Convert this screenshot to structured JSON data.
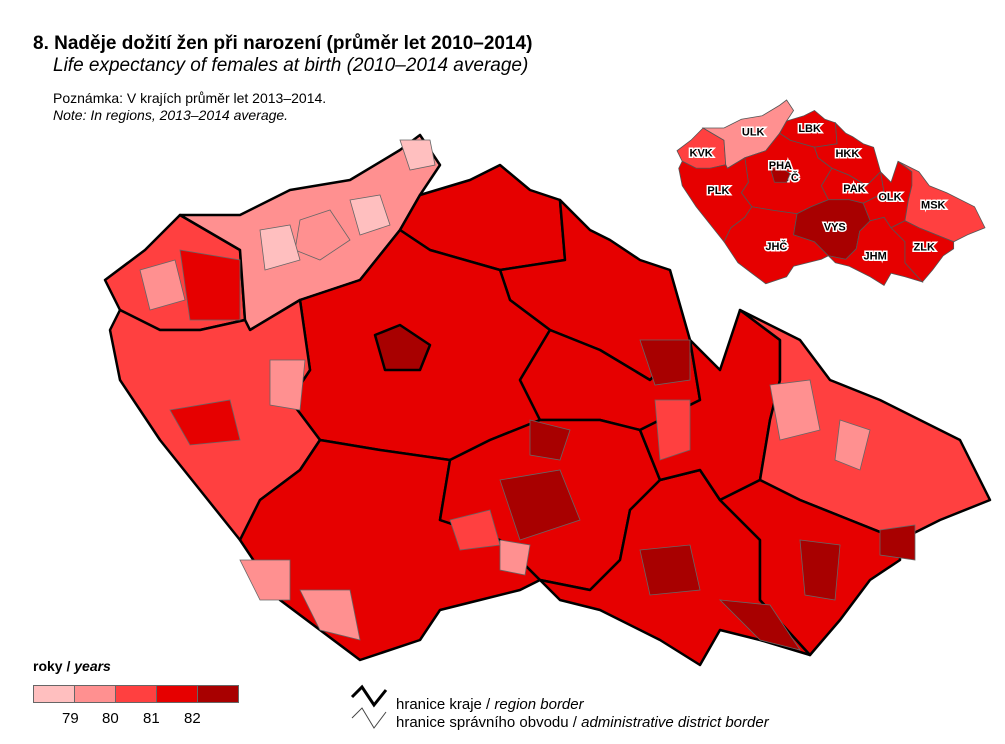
{
  "title": "8. Naděje dožití žen při narození (průměr let 2010–2014)",
  "subtitle": "Life expectancy of females at birth (2010–2014 average)",
  "note_cz": "Poznámka: V krajích průměr let 2013–2014.",
  "note_en": "Note: In regions, 2013–2014 average.",
  "legend": {
    "title_cz": "roky / ",
    "title_en": "years",
    "colors": [
      "#ffbfbf",
      "#ff9090",
      "#ff4040",
      "#e60000",
      "#a80000"
    ],
    "breaks": [
      "79",
      "80",
      "81",
      "82"
    ],
    "region_border_cz": "hranice kraje / ",
    "region_border_en": "region border",
    "district_border_cz": "hranice správního obvodu / ",
    "district_border_en": "administrative district border"
  },
  "regions": [
    {
      "code": "KVK",
      "class": 2,
      "inset_class": 2
    },
    {
      "code": "ULK",
      "class": 1,
      "inset_class": 1
    },
    {
      "code": "LBK",
      "class": 3,
      "inset_class": 3
    },
    {
      "code": "HKK",
      "class": 3,
      "inset_class": 3
    },
    {
      "code": "PHA",
      "class": 4,
      "inset_class": 4
    },
    {
      "code": "STČ",
      "class": 3,
      "inset_class": 3
    },
    {
      "code": "PLK",
      "class": 2,
      "inset_class": 3
    },
    {
      "code": "JHČ",
      "class": 3,
      "inset_class": 3
    },
    {
      "code": "PAK",
      "class": 3,
      "inset_class": 3
    },
    {
      "code": "VYS",
      "class": 3,
      "inset_class": 4
    },
    {
      "code": "JHM",
      "class": 3,
      "inset_class": 3
    },
    {
      "code": "OLK",
      "class": 3,
      "inset_class": 3
    },
    {
      "code": "MSK",
      "class": 2,
      "inset_class": 2
    },
    {
      "code": "ZLK",
      "class": 3,
      "inset_class": 3
    }
  ]
}
